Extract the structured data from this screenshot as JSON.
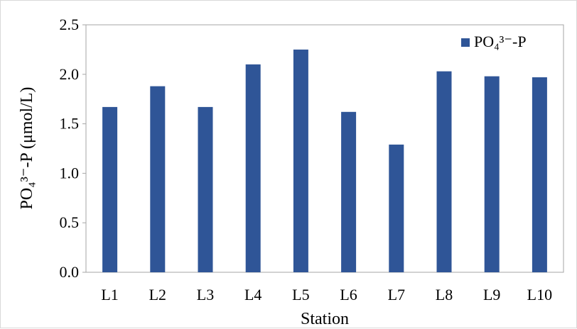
{
  "chart_data": {
    "type": "bar",
    "categories": [
      "L1",
      "L2",
      "L3",
      "L4",
      "L5",
      "L6",
      "L7",
      "L8",
      "L9",
      "L10"
    ],
    "series": [
      {
        "name": "PO₄³⁻-P",
        "values": [
          1.67,
          1.88,
          1.67,
          2.1,
          2.25,
          1.62,
          1.29,
          2.03,
          1.98,
          1.97
        ],
        "color": "#2F5597"
      }
    ],
    "xlabel": "Station",
    "ylabel": "PO₄³⁻-P (μmol/L)",
    "ylim": [
      0,
      2.5
    ],
    "yticks": [
      "0.0",
      "0.5",
      "1.0",
      "1.5",
      "2.0",
      "2.5"
    ],
    "grid": false,
    "legend_position": "top-right"
  }
}
